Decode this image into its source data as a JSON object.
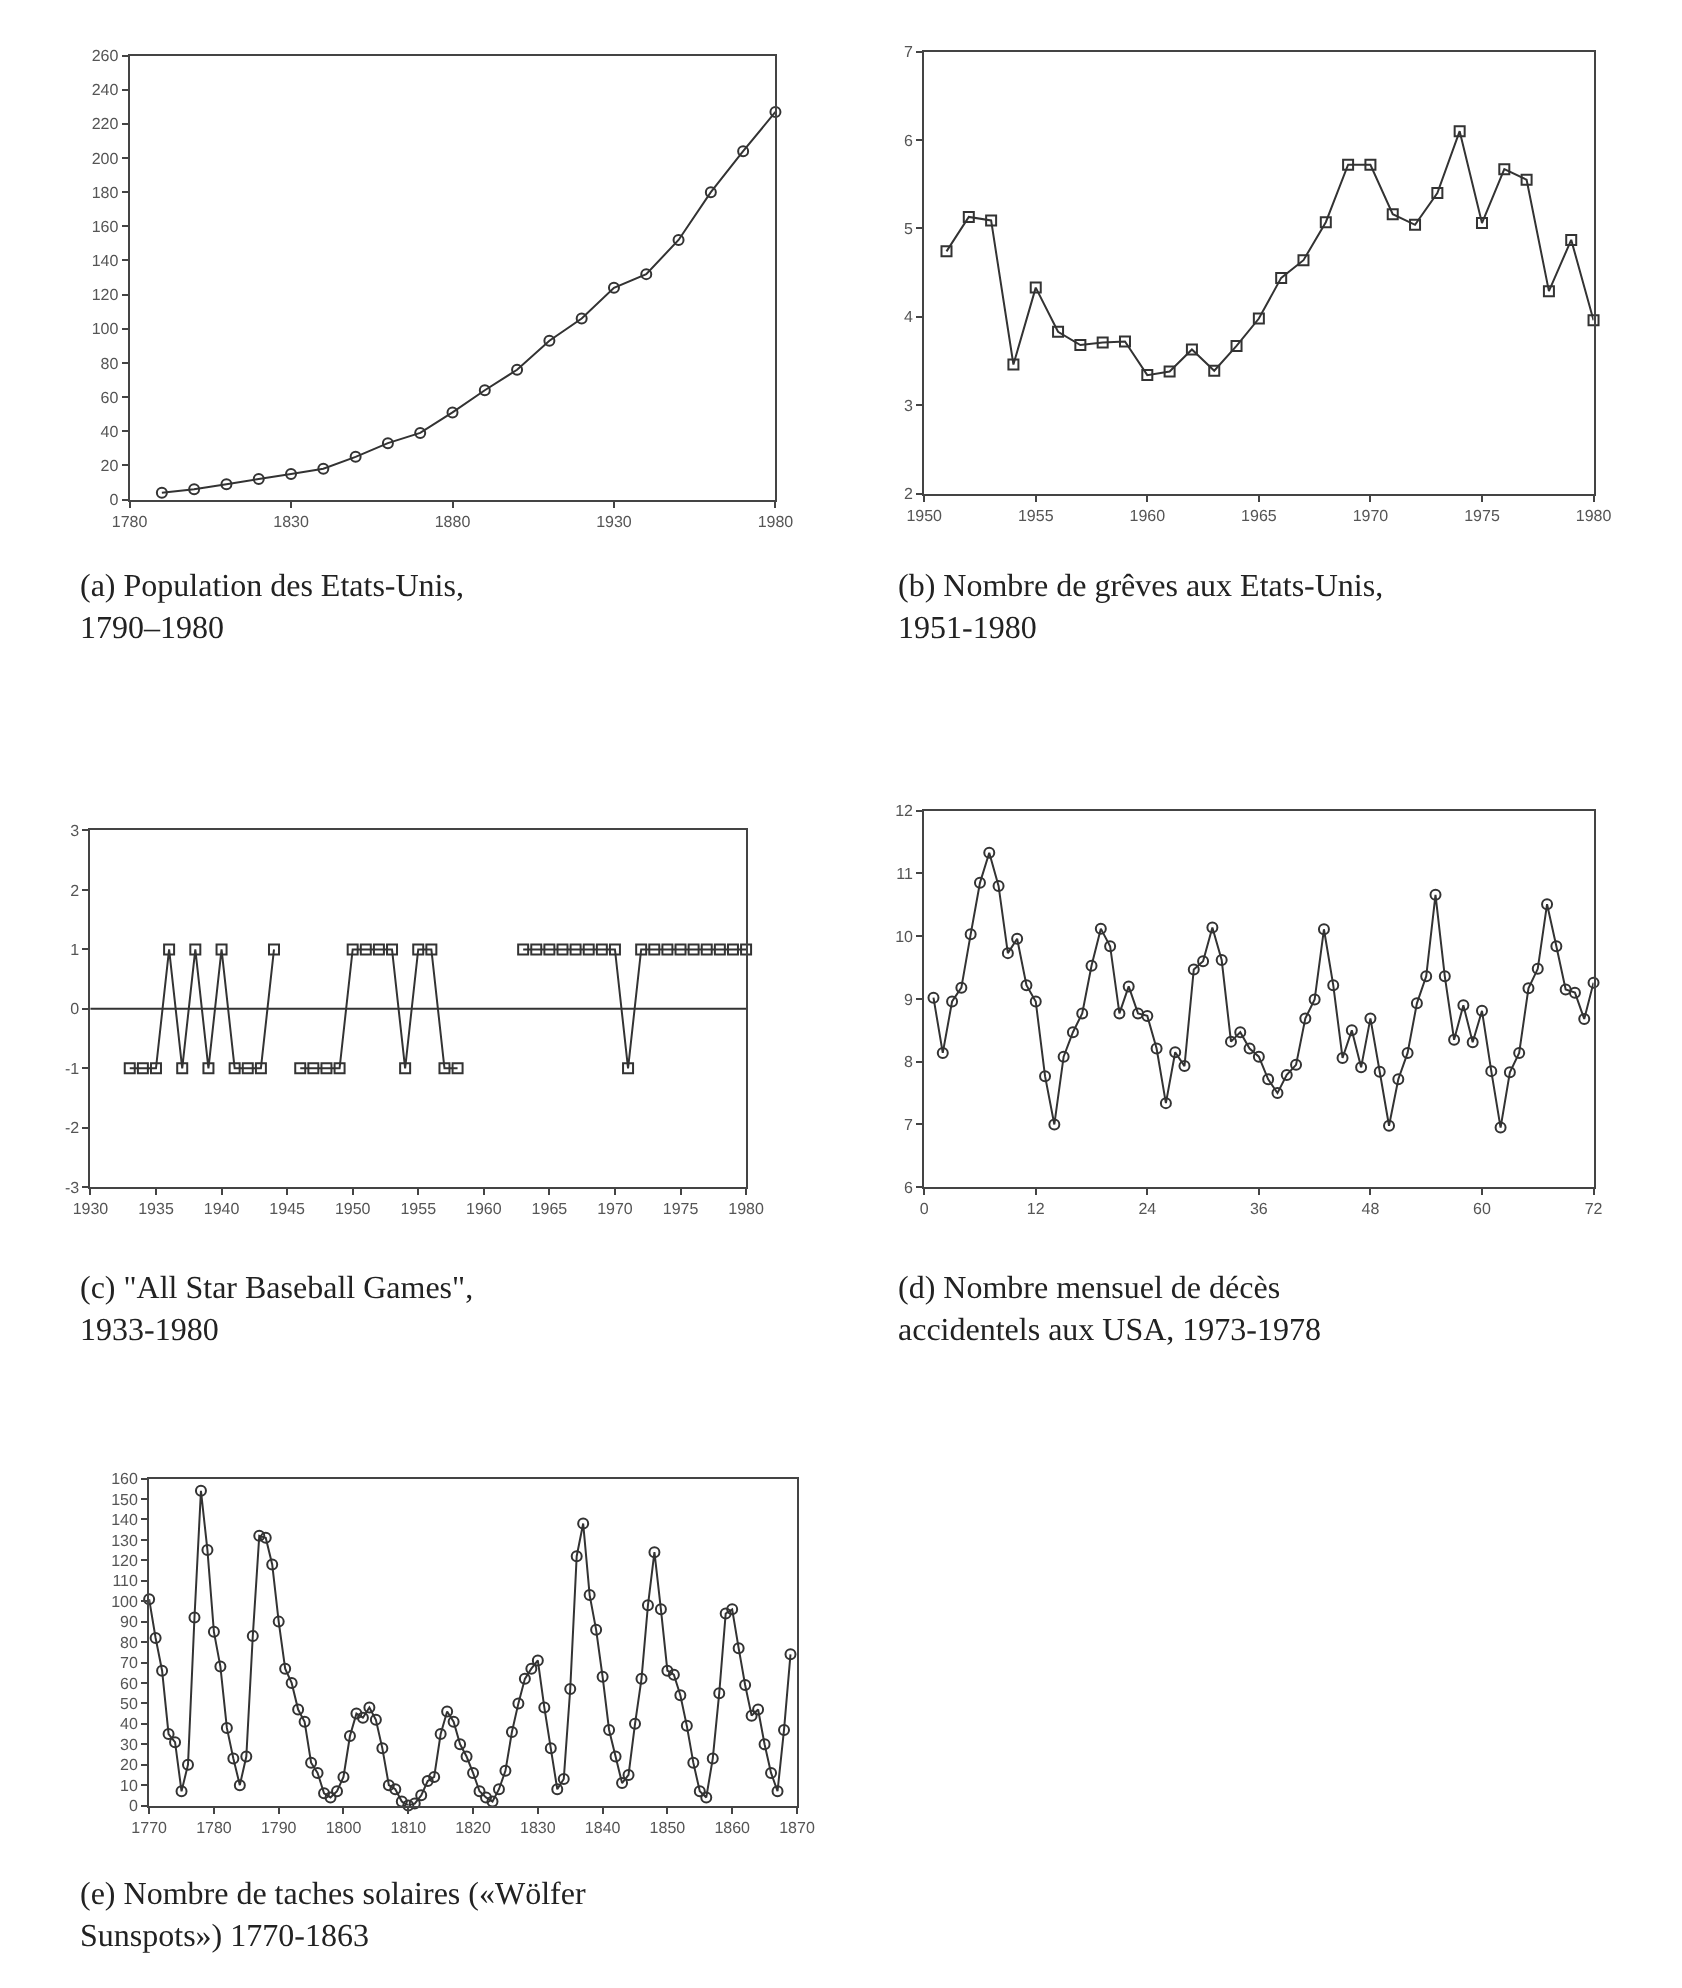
{
  "chart_data": [
    {
      "type": "line",
      "title": "(a) Population des Etats-Unis, 1790–1980",
      "marker": "circle",
      "color": "#333333",
      "x": [
        1790,
        1800,
        1810,
        1820,
        1830,
        1840,
        1850,
        1860,
        1870,
        1880,
        1890,
        1900,
        1910,
        1920,
        1930,
        1940,
        1950,
        1960,
        1970,
        1980
      ],
      "values": [
        4,
        6,
        9,
        12,
        15,
        18,
        25,
        33,
        39,
        51,
        64,
        76,
        93,
        106,
        124,
        132,
        152,
        180,
        204,
        227
      ],
      "xlim": [
        1780,
        1980
      ],
      "xticks": [
        1780,
        1830,
        1880,
        1930,
        1980
      ],
      "ylim": [
        0,
        260
      ],
      "yticks": [
        0,
        20,
        40,
        60,
        80,
        100,
        120,
        140,
        160,
        180,
        200,
        220,
        240,
        260
      ]
    },
    {
      "type": "line",
      "title": "(b) Nombre de grêves aux Etats-Unis, 1951-1980",
      "marker": "square",
      "color": "#333333",
      "x": [
        1951,
        1952,
        1953,
        1954,
        1955,
        1956,
        1957,
        1958,
        1959,
        1960,
        1961,
        1962,
        1963,
        1964,
        1965,
        1966,
        1967,
        1968,
        1969,
        1970,
        1971,
        1972,
        1973,
        1974,
        1975,
        1976,
        1977,
        1978,
        1979,
        1980
      ],
      "values": [
        4.74,
        5.13,
        5.09,
        3.46,
        4.33,
        3.83,
        3.68,
        3.71,
        3.72,
        3.34,
        3.38,
        3.63,
        3.39,
        3.67,
        3.98,
        4.44,
        4.64,
        5.07,
        5.72,
        5.72,
        5.16,
        5.04,
        5.4,
        6.1,
        5.06,
        5.67,
        5.55,
        4.29,
        4.87,
        3.96
      ],
      "xlim": [
        1950,
        1980
      ],
      "xticks": [
        1950,
        1955,
        1960,
        1965,
        1970,
        1975,
        1980
      ],
      "ylim": [
        2,
        7
      ],
      "yticks": [
        2,
        3,
        4,
        5,
        6,
        7
      ]
    },
    {
      "type": "line",
      "title": "(c) \"All Star Baseball Games\", 1933-1980",
      "marker": "square",
      "color": "#333333",
      "x": [
        1933,
        1934,
        1935,
        1936,
        1937,
        1938,
        1939,
        1940,
        1941,
        1942,
        1943,
        1944,
        1945,
        1946,
        1947,
        1948,
        1949,
        1950,
        1951,
        1952,
        1953,
        1954,
        1955,
        1956,
        1957,
        1958,
        1959,
        1960,
        1961,
        1962,
        1963,
        1964,
        1965,
        1966,
        1967,
        1968,
        1969,
        1970,
        1971,
        1972,
        1973,
        1974,
        1975,
        1976,
        1977,
        1978,
        1979,
        1980
      ],
      "values": [
        -1,
        -1,
        -1,
        1,
        -1,
        1,
        -1,
        1,
        -1,
        -1,
        -1,
        1,
        null,
        -1,
        -1,
        -1,
        -1,
        1,
        1,
        1,
        1,
        -1,
        1,
        1,
        -1,
        -1,
        null,
        null,
        null,
        null,
        1,
        1,
        1,
        1,
        1,
        1,
        1,
        1,
        -1,
        1,
        1,
        1,
        1,
        1,
        1,
        1,
        1,
        1
      ],
      "xlim": [
        1930,
        1980
      ],
      "xticks": [
        1930,
        1935,
        1940,
        1945,
        1950,
        1955,
        1960,
        1965,
        1970,
        1975,
        1980
      ],
      "ylim": [
        -3,
        3
      ],
      "yticks": [
        -3,
        -2,
        -1,
        0,
        1,
        2,
        3
      ],
      "ref_lines": [
        {
          "axis": "y",
          "value": 0,
          "color": "#333333"
        }
      ]
    },
    {
      "type": "line",
      "title": "(d) Nombre mensuel de décès accidentels aux USA, 1973-1978",
      "marker": "circle",
      "color": "#333333",
      "x": [
        1,
        2,
        3,
        4,
        5,
        6,
        7,
        8,
        9,
        10,
        11,
        12,
        13,
        14,
        15,
        16,
        17,
        18,
        19,
        20,
        21,
        22,
        23,
        24,
        25,
        26,
        27,
        28,
        29,
        30,
        31,
        32,
        33,
        34,
        35,
        36,
        37,
        38,
        39,
        40,
        41,
        42,
        43,
        44,
        45,
        46,
        47,
        48,
        49,
        50,
        51,
        52,
        53,
        54,
        55,
        56,
        57,
        58,
        59,
        60,
        61,
        62,
        63,
        64,
        65,
        66,
        67,
        68,
        69,
        70,
        71,
        72
      ],
      "values": [
        9.02,
        8.14,
        8.96,
        9.18,
        10.03,
        10.85,
        11.33,
        10.8,
        9.73,
        9.96,
        9.22,
        8.96,
        7.77,
        7.0,
        8.08,
        8.47,
        8.77,
        9.53,
        10.12,
        9.84,
        8.77,
        9.2,
        8.77,
        8.73,
        8.21,
        7.34,
        8.15,
        7.93,
        9.47,
        9.6,
        10.14,
        9.62,
        8.32,
        8.47,
        8.21,
        8.08,
        7.72,
        7.5,
        7.79,
        7.95,
        8.69,
        8.99,
        10.11,
        9.22,
        8.06,
        8.5,
        7.91,
        8.69,
        7.84,
        6.98,
        7.72,
        8.14,
        8.93,
        9.36,
        10.66,
        9.36,
        8.35,
        8.9,
        8.31,
        8.81,
        7.85,
        6.95,
        7.83,
        8.14,
        9.17,
        9.48,
        10.51,
        9.84,
        9.15,
        9.1,
        8.68,
        9.26
      ],
      "xlim": [
        0,
        72
      ],
      "xticks": [
        0,
        12,
        24,
        36,
        48,
        60,
        72
      ],
      "ylim": [
        6,
        12
      ],
      "yticks": [
        6,
        7,
        8,
        9,
        10,
        11,
        12
      ]
    },
    {
      "type": "line",
      "title": "(e) Nombre de taches solaires («Wölfer Sunspots») 1770-1863",
      "marker": "circle",
      "color": "#333333",
      "x": [
        1770,
        1771,
        1772,
        1773,
        1774,
        1775,
        1776,
        1777,
        1778,
        1779,
        1780,
        1781,
        1782,
        1783,
        1784,
        1785,
        1786,
        1787,
        1788,
        1789,
        1790,
        1791,
        1792,
        1793,
        1794,
        1795,
        1796,
        1797,
        1798,
        1799,
        1800,
        1801,
        1802,
        1803,
        1804,
        1805,
        1806,
        1807,
        1808,
        1809,
        1810,
        1811,
        1812,
        1813,
        1814,
        1815,
        1816,
        1817,
        1818,
        1819,
        1820,
        1821,
        1822,
        1823,
        1824,
        1825,
        1826,
        1827,
        1828,
        1829,
        1830,
        1831,
        1832,
        1833,
        1834,
        1835,
        1836,
        1837,
        1838,
        1839,
        1840,
        1841,
        1842,
        1843,
        1844,
        1845,
        1846,
        1847,
        1848,
        1849,
        1850,
        1851,
        1852,
        1853,
        1854,
        1855,
        1856,
        1857,
        1858,
        1859,
        1860,
        1861,
        1862,
        1863,
        1864,
        1865,
        1866,
        1867,
        1868,
        1869
      ],
      "values": [
        101,
        82,
        66,
        35,
        31,
        7,
        20,
        92,
        154,
        125,
        85,
        68,
        38,
        23,
        10,
        24,
        83,
        132,
        131,
        118,
        90,
        67,
        60,
        47,
        41,
        21,
        16,
        6,
        4,
        7,
        14,
        34,
        45,
        43,
        48,
        42,
        28,
        10,
        8,
        2,
        0,
        1,
        5,
        12,
        14,
        35,
        46,
        41,
        30,
        24,
        16,
        7,
        4,
        2,
        8,
        17,
        36,
        50,
        62,
        67,
        71,
        48,
        28,
        8,
        13,
        57,
        122,
        138,
        103,
        86,
        63,
        37,
        24,
        11,
        15,
        40,
        62,
        98,
        124,
        96,
        66,
        64,
        54,
        39,
        21,
        7,
        4,
        23,
        55,
        94,
        96,
        77,
        59,
        44,
        47,
        30,
        16,
        7,
        37,
        74
      ],
      "xlim": [
        1770,
        1870
      ],
      "xticks": [
        1770,
        1780,
        1790,
        1800,
        1810,
        1820,
        1830,
        1840,
        1850,
        1860,
        1870
      ],
      "ylim": [
        0,
        160
      ],
      "yticks": [
        0,
        10,
        20,
        30,
        40,
        50,
        60,
        70,
        80,
        90,
        100,
        110,
        120,
        130,
        140,
        150,
        160
      ]
    }
  ]
}
